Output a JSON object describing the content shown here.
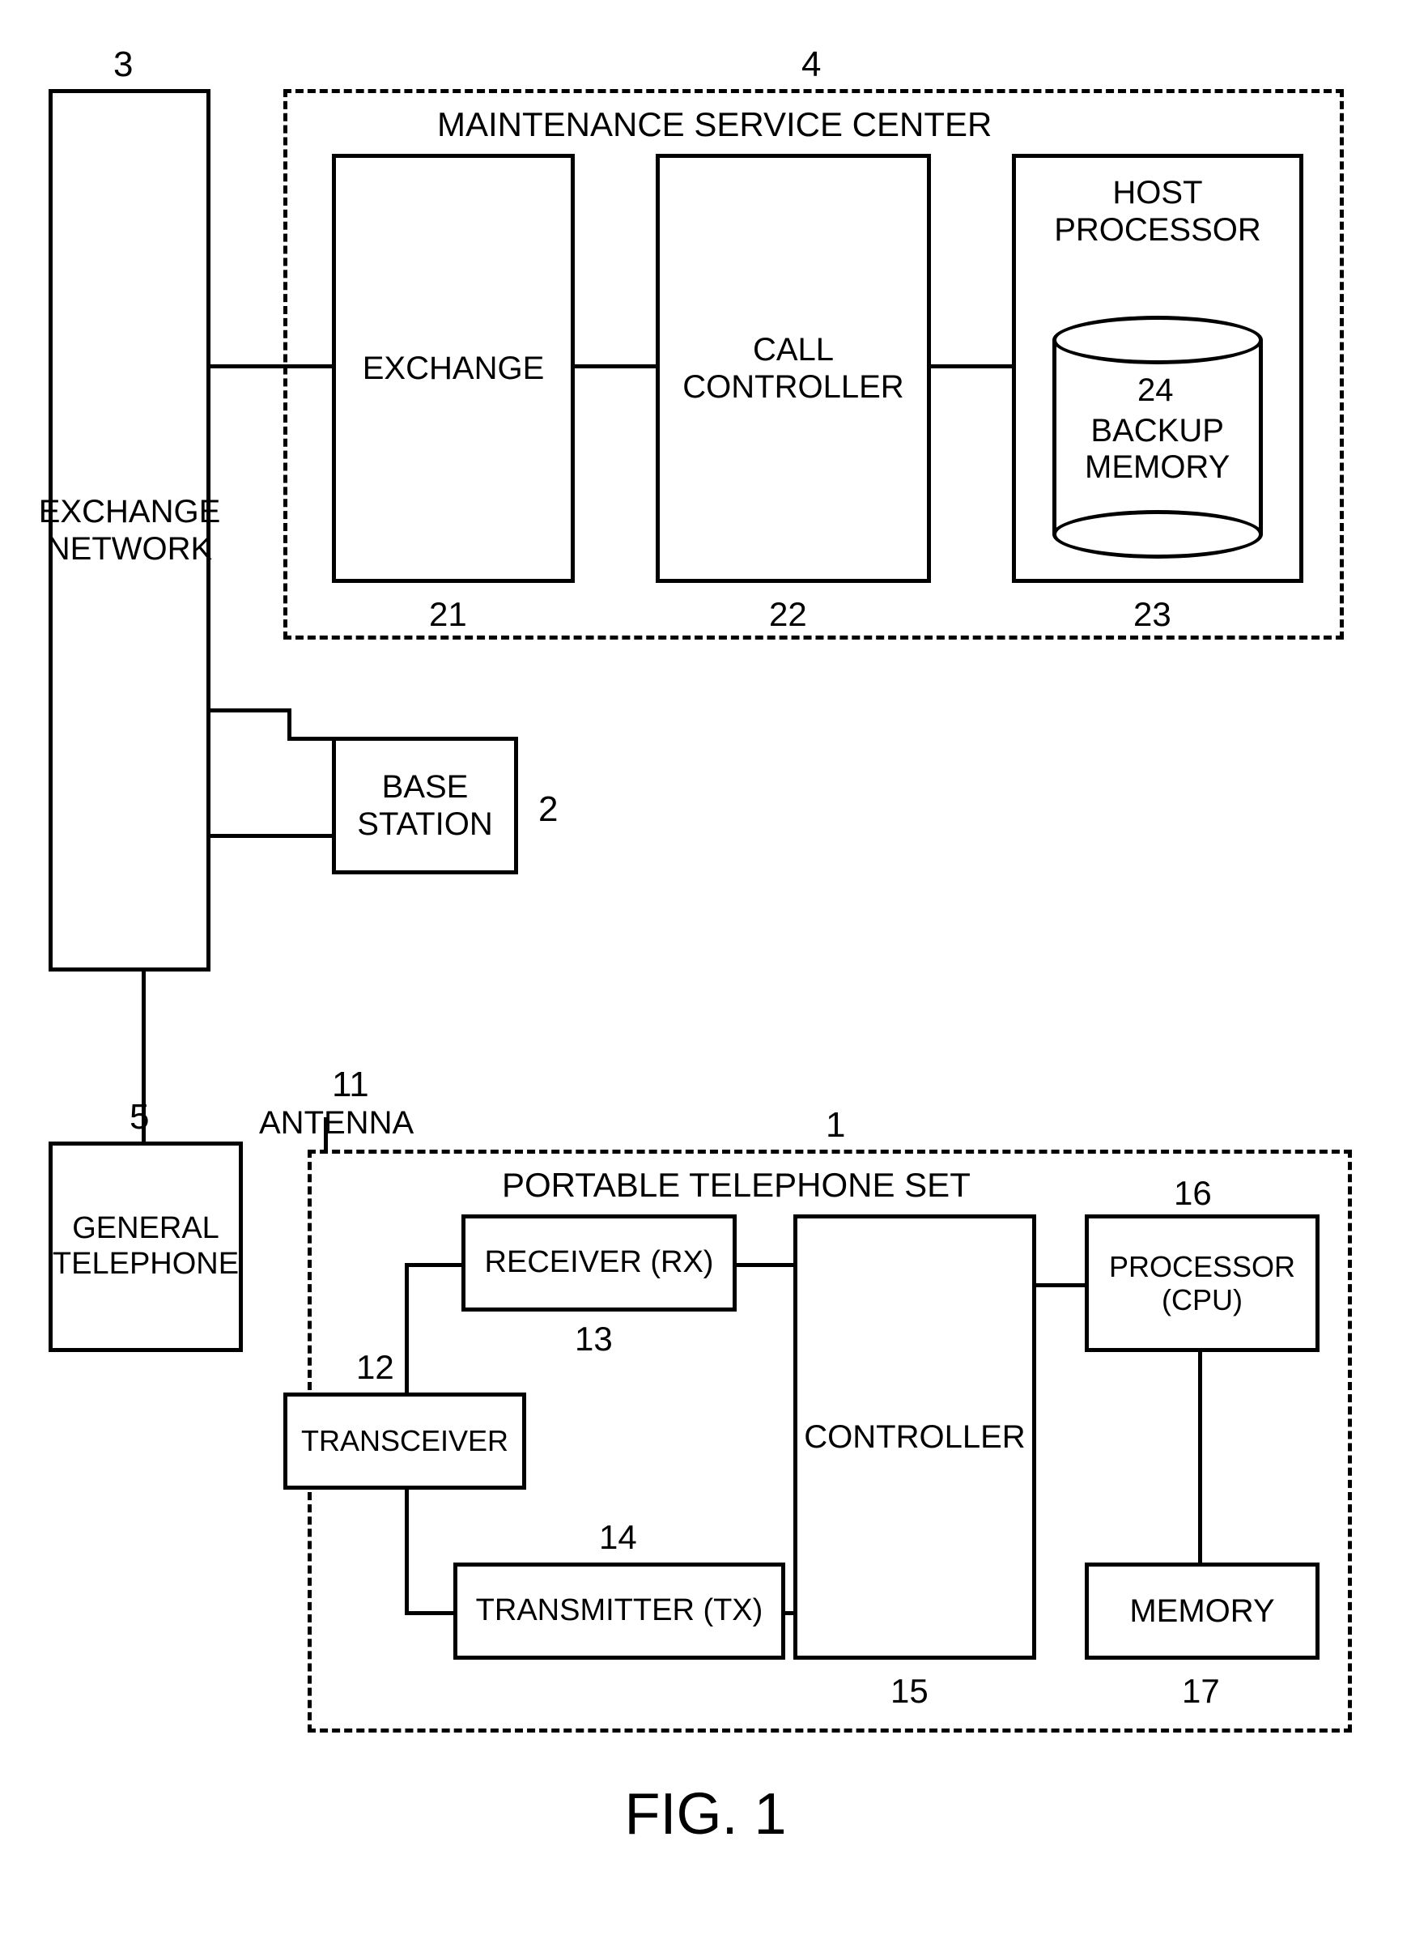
{
  "figure_title": "FIG. 1",
  "colors": {
    "stroke": "#000000",
    "background": "#ffffff"
  },
  "line_width": 5,
  "font": {
    "family": "Arial, Helvetica, sans-serif",
    "label_size": 40,
    "box_text_size": 40,
    "title_size": 72
  },
  "exchange_network": {
    "id": "3",
    "label": "EXCHANGE\nNETWORK"
  },
  "maintenance_center": {
    "id": "4",
    "title": "MAINTENANCE SERVICE CENTER",
    "exchange": {
      "id": "21",
      "label": "EXCHANGE"
    },
    "call_controller": {
      "id": "22",
      "label": "CALL\nCONTROLLER"
    },
    "host_processor": {
      "id": "23",
      "label": "HOST\nPROCESSOR",
      "backup_memory": {
        "id": "24",
        "label": "BACKUP\nMEMORY"
      }
    }
  },
  "base_station": {
    "id": "2",
    "label": "BASE\nSTATION"
  },
  "general_telephone": {
    "id": "5",
    "label": "GENERAL\nTELEPHONE"
  },
  "antenna": {
    "id": "11",
    "label": "ANTENNA"
  },
  "portable_set": {
    "id": "1",
    "title": "PORTABLE TELEPHONE SET",
    "transceiver": {
      "id": "12",
      "label": "TRANSCEIVER"
    },
    "receiver": {
      "id": "13",
      "label": "RECEIVER (RX)"
    },
    "transmitter": {
      "id": "14",
      "label": "TRANSMITTER (TX)"
    },
    "controller": {
      "id": "15",
      "label": "CONTROLLER"
    },
    "processor": {
      "id": "16",
      "label": "PROCESSOR\n(CPU)"
    },
    "memory": {
      "id": "17",
      "label": "MEMORY"
    }
  }
}
